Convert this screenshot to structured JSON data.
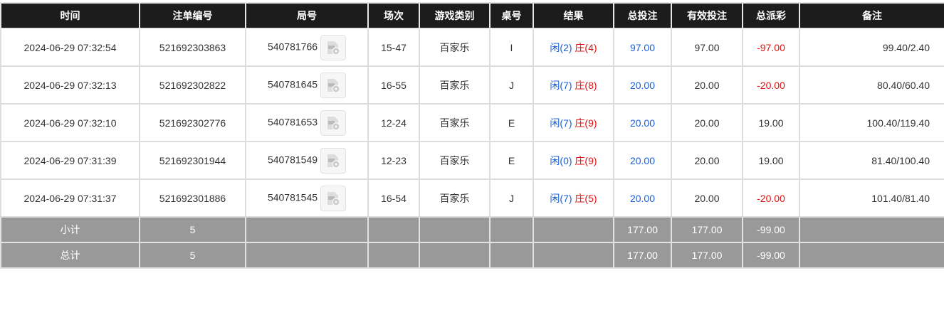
{
  "headers": [
    "时间",
    "注单编号",
    "局号",
    "场次",
    "游戏类别",
    "桌号",
    "结果",
    "总投注",
    "有效投注",
    "总派彩",
    "备注"
  ],
  "colors": {
    "blue": "#1a5fd6",
    "red": "#e01010",
    "header_bg": "#1c1c1c",
    "summary_bg": "#999999"
  },
  "rows": [
    {
      "time": "2024-06-29 07:32:54",
      "bet_id": "521692303863",
      "round": "540781766",
      "shoe": "15-47",
      "game": "百家乐",
      "table": "I",
      "player": "闲(2)",
      "banker": "庄(4)",
      "total": "97.00",
      "valid": "97.00",
      "payout": "-97.00",
      "payout_neg": true,
      "remark": "99.40/2.40"
    },
    {
      "time": "2024-06-29 07:32:13",
      "bet_id": "521692302822",
      "round": "540781645",
      "shoe": "16-55",
      "game": "百家乐",
      "table": "J",
      "player": "闲(7)",
      "banker": "庄(8)",
      "total": "20.00",
      "valid": "20.00",
      "payout": "-20.00",
      "payout_neg": true,
      "remark": "80.40/60.40"
    },
    {
      "time": "2024-06-29 07:32:10",
      "bet_id": "521692302776",
      "round": "540781653",
      "shoe": "12-24",
      "game": "百家乐",
      "table": "E",
      "player": "闲(7)",
      "banker": "庄(9)",
      "total": "20.00",
      "valid": "20.00",
      "payout": "19.00",
      "payout_neg": false,
      "remark": "100.40/119.40"
    },
    {
      "time": "2024-06-29 07:31:39",
      "bet_id": "521692301944",
      "round": "540781549",
      "shoe": "12-23",
      "game": "百家乐",
      "table": "E",
      "player": "闲(0)",
      "banker": "庄(9)",
      "total": "20.00",
      "valid": "20.00",
      "payout": "19.00",
      "payout_neg": false,
      "remark": "81.40/100.40"
    },
    {
      "time": "2024-06-29 07:31:37",
      "bet_id": "521692301886",
      "round": "540781545",
      "shoe": "16-54",
      "game": "百家乐",
      "table": "J",
      "player": "闲(7)",
      "banker": "庄(5)",
      "total": "20.00",
      "valid": "20.00",
      "payout": "-20.00",
      "payout_neg": true,
      "remark": "101.40/81.40"
    }
  ],
  "summary": [
    {
      "label": "小计",
      "count": "5",
      "total": "177.00",
      "valid": "177.00",
      "payout": "-99.00"
    },
    {
      "label": "总计",
      "count": "5",
      "total": "177.00",
      "valid": "177.00",
      "payout": "-99.00"
    }
  ],
  "video_icon": "video-replay-icon"
}
